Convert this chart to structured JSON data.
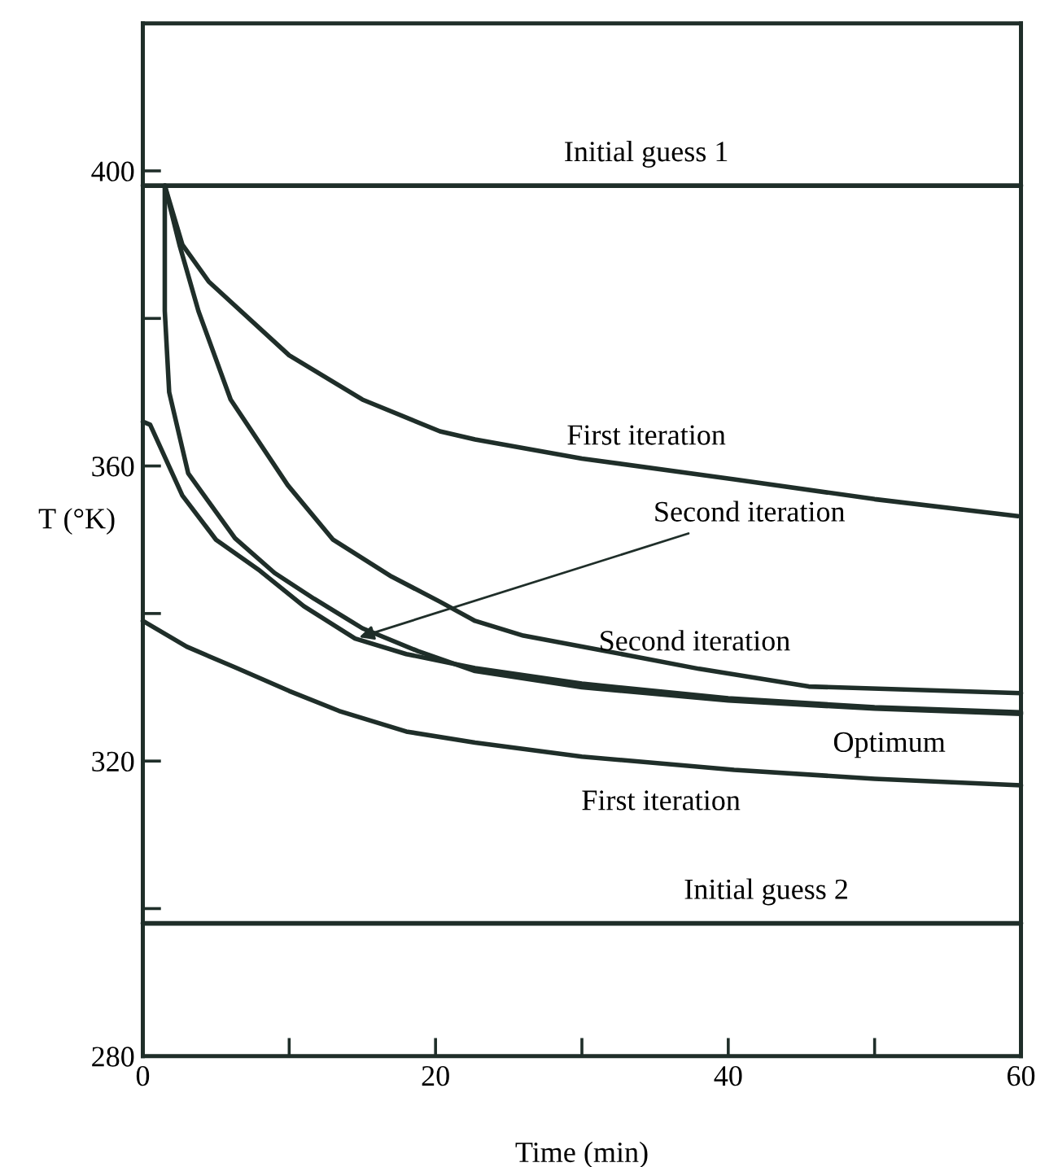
{
  "chart_data": {
    "type": "line",
    "xlabel": "Time (min)",
    "ylabel": "T (°K)",
    "xlim": [
      0,
      60
    ],
    "ylim": [
      280,
      420
    ],
    "xticks": [
      0,
      {
        "value": 10,
        "label": null
      },
      20,
      {
        "value": 30,
        "label": null
      },
      40,
      {
        "value": 50,
        "label": null
      },
      60
    ],
    "yticks": [
      280,
      {
        "value": 300,
        "label": null
      },
      320,
      {
        "value": 340,
        "label": null
      },
      360,
      {
        "value": 380,
        "label": null
      },
      400
    ],
    "grid": false,
    "legend": false,
    "marker": "none",
    "line_style": "solid",
    "series": [
      {
        "color": "#1f2e29",
        "x": [
          0,
          60
        ],
        "values": [
          398,
          398
        ]
      },
      {
        "color": "#1f2e29",
        "x": [
          1.5,
          2.7,
          4.5,
          10,
          15,
          20.3,
          22.7,
          30,
          40.4,
          50,
          59.8
        ],
        "values": [
          398,
          390,
          385,
          375,
          369,
          364.7,
          363.6,
          361,
          358.2,
          355.5,
          353.2
        ]
      },
      {
        "color": "#1f2e29",
        "x": [
          1.5,
          2.5,
          3.8,
          6,
          9.9,
          13,
          17,
          20.3,
          22.7,
          26,
          31.4,
          38,
          45.5,
          60
        ],
        "values": [
          398,
          390,
          381,
          369,
          357.4,
          350,
          345,
          341.6,
          339,
          337,
          335,
          332.5,
          330.1,
          329.2
        ]
      },
      {
        "color": "#1f2e29",
        "x": [
          0,
          0.5,
          2.7,
          5,
          8,
          11,
          14.5,
          18,
          22.7,
          30,
          40,
          50,
          60
        ],
        "values": [
          366,
          365.6,
          356,
          350,
          345.8,
          341,
          336.6,
          334.5,
          332.6,
          330.5,
          328.5,
          327.3,
          326.6
        ]
      },
      {
        "color": "#1f2e29",
        "x": [
          1.5,
          1.5,
          1.8,
          3.1,
          6.3,
          9,
          11.7,
          15,
          18.8,
          22.7,
          30,
          40,
          50,
          60
        ],
        "values": [
          398,
          381,
          370,
          359,
          350.2,
          345.5,
          342,
          338,
          334.9,
          332.2,
          330,
          328.2,
          327.1,
          326.4
        ]
      },
      {
        "color": "#1f2e29",
        "x": [
          0,
          3,
          6.3,
          10,
          13.4,
          18,
          22.7,
          30,
          40.4,
          50,
          60
        ],
        "values": [
          339,
          335.5,
          332.7,
          329.5,
          326.8,
          324,
          322.5,
          320.6,
          318.8,
          317.6,
          316.7
        ]
      },
      {
        "color": "#1f2e29",
        "x": [
          0,
          60
        ],
        "values": [
          298,
          298
        ]
      }
    ],
    "annotations": [
      {
        "text": "Initial guess 1",
        "x": 34.4,
        "y": 398
      },
      {
        "text": "First iteration",
        "x": 34.4,
        "y": 359.6
      },
      {
        "text": "Second iteration",
        "x": 14.5,
        "y": 336.6
      },
      {
        "text": "Second iteration",
        "x": 37.7,
        "y": 331.7
      },
      {
        "text": "Optimum",
        "x": 51,
        "y": 327.1
      },
      {
        "text": "First iteration",
        "x": 35.4,
        "y": 319.2
      },
      {
        "text": "Initial guess 2",
        "x": 42.6,
        "y": 298
      }
    ]
  }
}
